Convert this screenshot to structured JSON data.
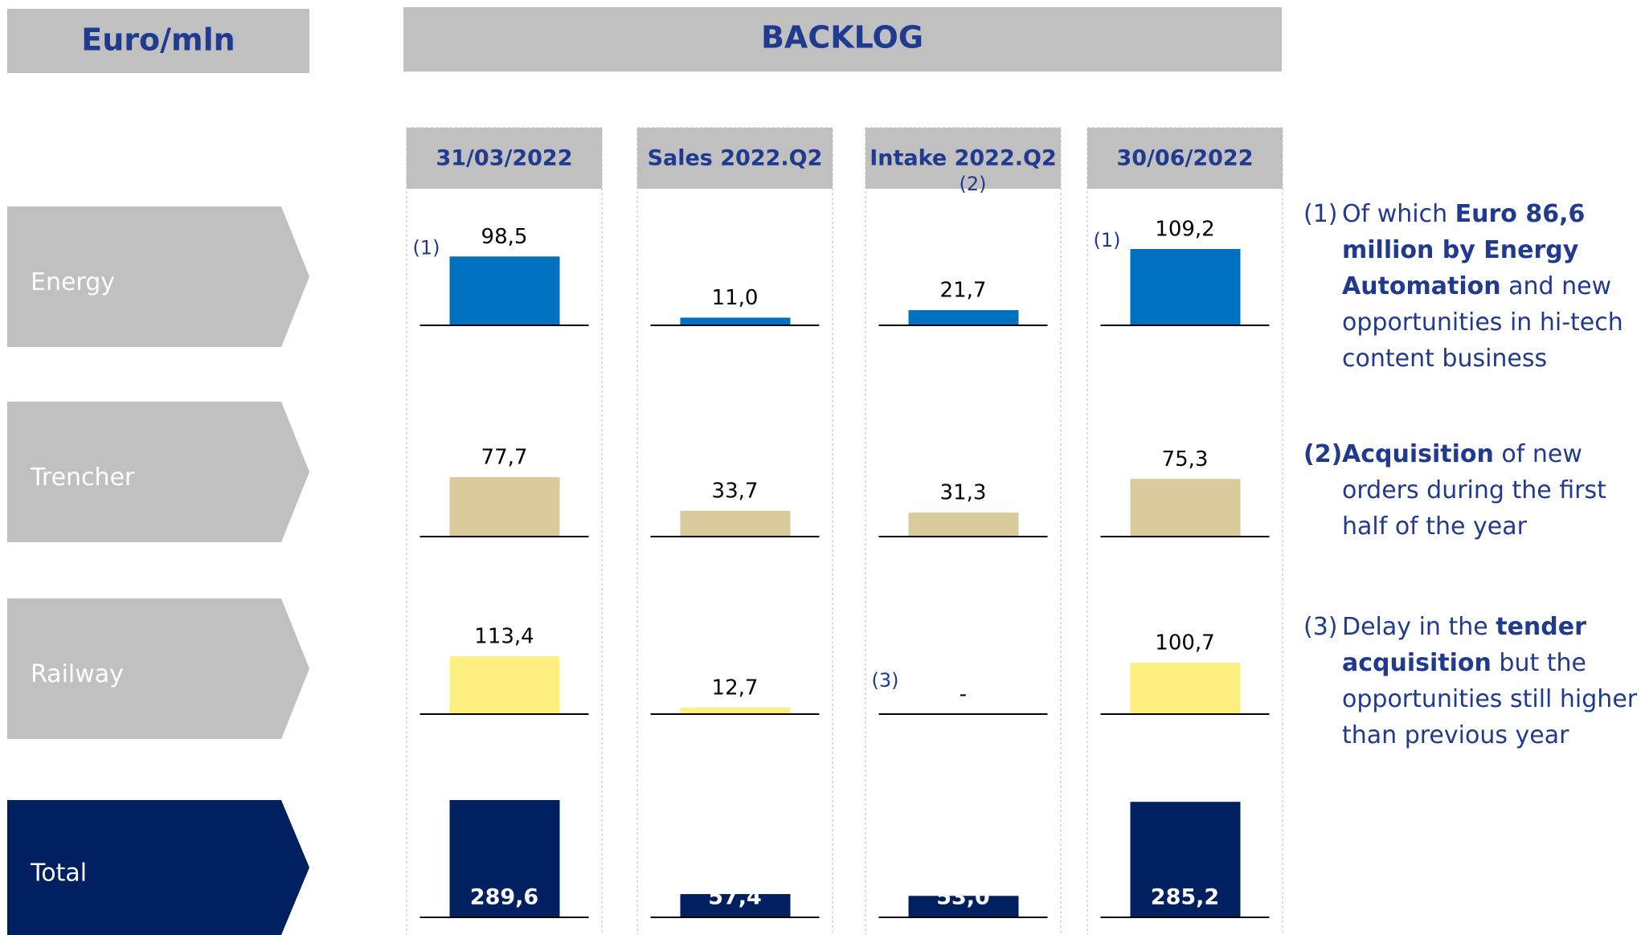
{
  "chart_data": {
    "type": "bar",
    "unit_label": "Euro/mln",
    "title": "BACKLOG",
    "categories": [
      "Energy",
      "Trencher",
      "Railway",
      "Total"
    ],
    "colors": [
      "#0070c0",
      "#d9cb9c",
      "#fdf07e",
      "#002060"
    ],
    "series": [
      {
        "name": "31/03/2022",
        "values": [
          98.5,
          77.7,
          113.4,
          289.6
        ],
        "value_labels": [
          "98,5",
          "77,7",
          "113,4",
          "289,6"
        ],
        "markers": [
          "(1)",
          null,
          null,
          null
        ]
      },
      {
        "name": "Sales 2022.Q2",
        "values": [
          11.0,
          33.7,
          12.7,
          57.4
        ],
        "value_labels": [
          "11,0",
          "33,7",
          "12,7",
          "57,4"
        ],
        "markers": [
          null,
          null,
          null,
          null
        ]
      },
      {
        "name": "Intake 2022.Q2",
        "header_note": "(2)",
        "values": [
          21.7,
          31.3,
          0,
          53.0
        ],
        "value_labels": [
          "21,7",
          "31,3",
          "-",
          "53,0"
        ],
        "markers": [
          null,
          null,
          "(3)",
          null
        ]
      },
      {
        "name": "30/06/2022",
        "values": [
          109.2,
          75.3,
          100.7,
          285.2
        ],
        "value_labels": [
          "109,2",
          "75,3",
          "100,7",
          "285,2"
        ],
        "markers": [
          "(1)",
          null,
          null,
          null
        ]
      }
    ],
    "notes": [
      {
        "marker": "(1)",
        "marker_bold": false,
        "parts": [
          {
            "text": "Of which ",
            "bold": false
          },
          {
            "text": "Euro 86,6 million by Energy Automation",
            "bold": true
          },
          {
            "text": " and new opportunities in hi-tech content business",
            "bold": false
          }
        ]
      },
      {
        "marker": "(2)",
        "marker_bold": true,
        "parts": [
          {
            "text": "Acquisition",
            "bold": true
          },
          {
            "text": " of new orders during the first half of the year",
            "bold": false
          }
        ]
      },
      {
        "marker": "(3)",
        "marker_bold": false,
        "parts": [
          {
            "text": "Delay in the ",
            "bold": false
          },
          {
            "text": "tender acquisition",
            "bold": true
          },
          {
            "text": " but the opportunities still higher than previous year",
            "bold": false
          }
        ]
      }
    ]
  }
}
